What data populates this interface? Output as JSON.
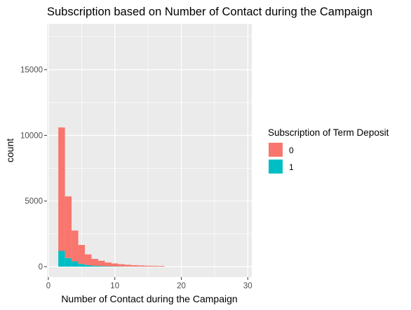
{
  "chart_data": {
    "type": "bar",
    "subtype": "stacked-histogram",
    "title": "Subscription based on Number of Contact during the Campaign",
    "xlabel": "Number of Contact during the Campaign",
    "ylabel": "count",
    "xlim": [
      -0.2,
      30.6
    ],
    "ylim": [
      -800,
      18500
    ],
    "x_ticks": [
      0,
      10,
      20,
      30
    ],
    "x_tick_labels": [
      "0",
      "10",
      "20",
      "30"
    ],
    "y_ticks": [
      0,
      5000,
      10000,
      15000
    ],
    "y_tick_labels": [
      "0",
      "5000",
      "10000",
      "15000"
    ],
    "bin_width": 1,
    "bins": [
      {
        "x0": 1.5,
        "x1": 2.5,
        "values": {
          "0": 9400,
          "1": 1200
        }
      },
      {
        "x0": 2.5,
        "x1": 3.5,
        "values": {
          "0": 4700,
          "1": 650
        }
      },
      {
        "x0": 3.5,
        "x1": 4.5,
        "values": {
          "0": 2350,
          "1": 400
        }
      },
      {
        "x0": 4.5,
        "x1": 5.5,
        "values": {
          "0": 1450,
          "1": 200
        }
      },
      {
        "x0": 5.5,
        "x1": 6.5,
        "values": {
          "0": 820,
          "1": 110
        }
      },
      {
        "x0": 6.5,
        "x1": 7.5,
        "values": {
          "0": 520,
          "1": 70
        }
      },
      {
        "x0": 7.5,
        "x1": 8.5,
        "values": {
          "0": 400,
          "1": 45
        }
      },
      {
        "x0": 8.5,
        "x1": 9.5,
        "values": {
          "0": 280,
          "1": 30
        }
      },
      {
        "x0": 9.5,
        "x1": 10.5,
        "values": {
          "0": 220,
          "1": 20
        }
      },
      {
        "x0": 10.5,
        "x1": 11.5,
        "values": {
          "0": 170,
          "1": 15
        }
      },
      {
        "x0": 11.5,
        "x1": 12.5,
        "values": {
          "0": 130,
          "1": 10
        }
      },
      {
        "x0": 12.5,
        "x1": 13.5,
        "values": {
          "0": 100,
          "1": 8
        }
      },
      {
        "x0": 13.5,
        "x1": 14.5,
        "values": {
          "0": 85,
          "1": 5
        }
      },
      {
        "x0": 14.5,
        "x1": 15.5,
        "values": {
          "0": 65,
          "1": 4
        }
      },
      {
        "x0": 15.5,
        "x1": 16.5,
        "values": {
          "0": 55,
          "1": 3
        }
      },
      {
        "x0": 16.5,
        "x1": 17.5,
        "values": {
          "0": 45,
          "1": 2
        }
      }
    ],
    "series": [
      {
        "name": "0",
        "color": "#F8766D"
      },
      {
        "name": "1",
        "color": "#00BFC4"
      }
    ],
    "legend": {
      "title": "Subscription of Term Deposit",
      "position": "right"
    },
    "grid": true,
    "panel_background": "#EBEBEB"
  }
}
